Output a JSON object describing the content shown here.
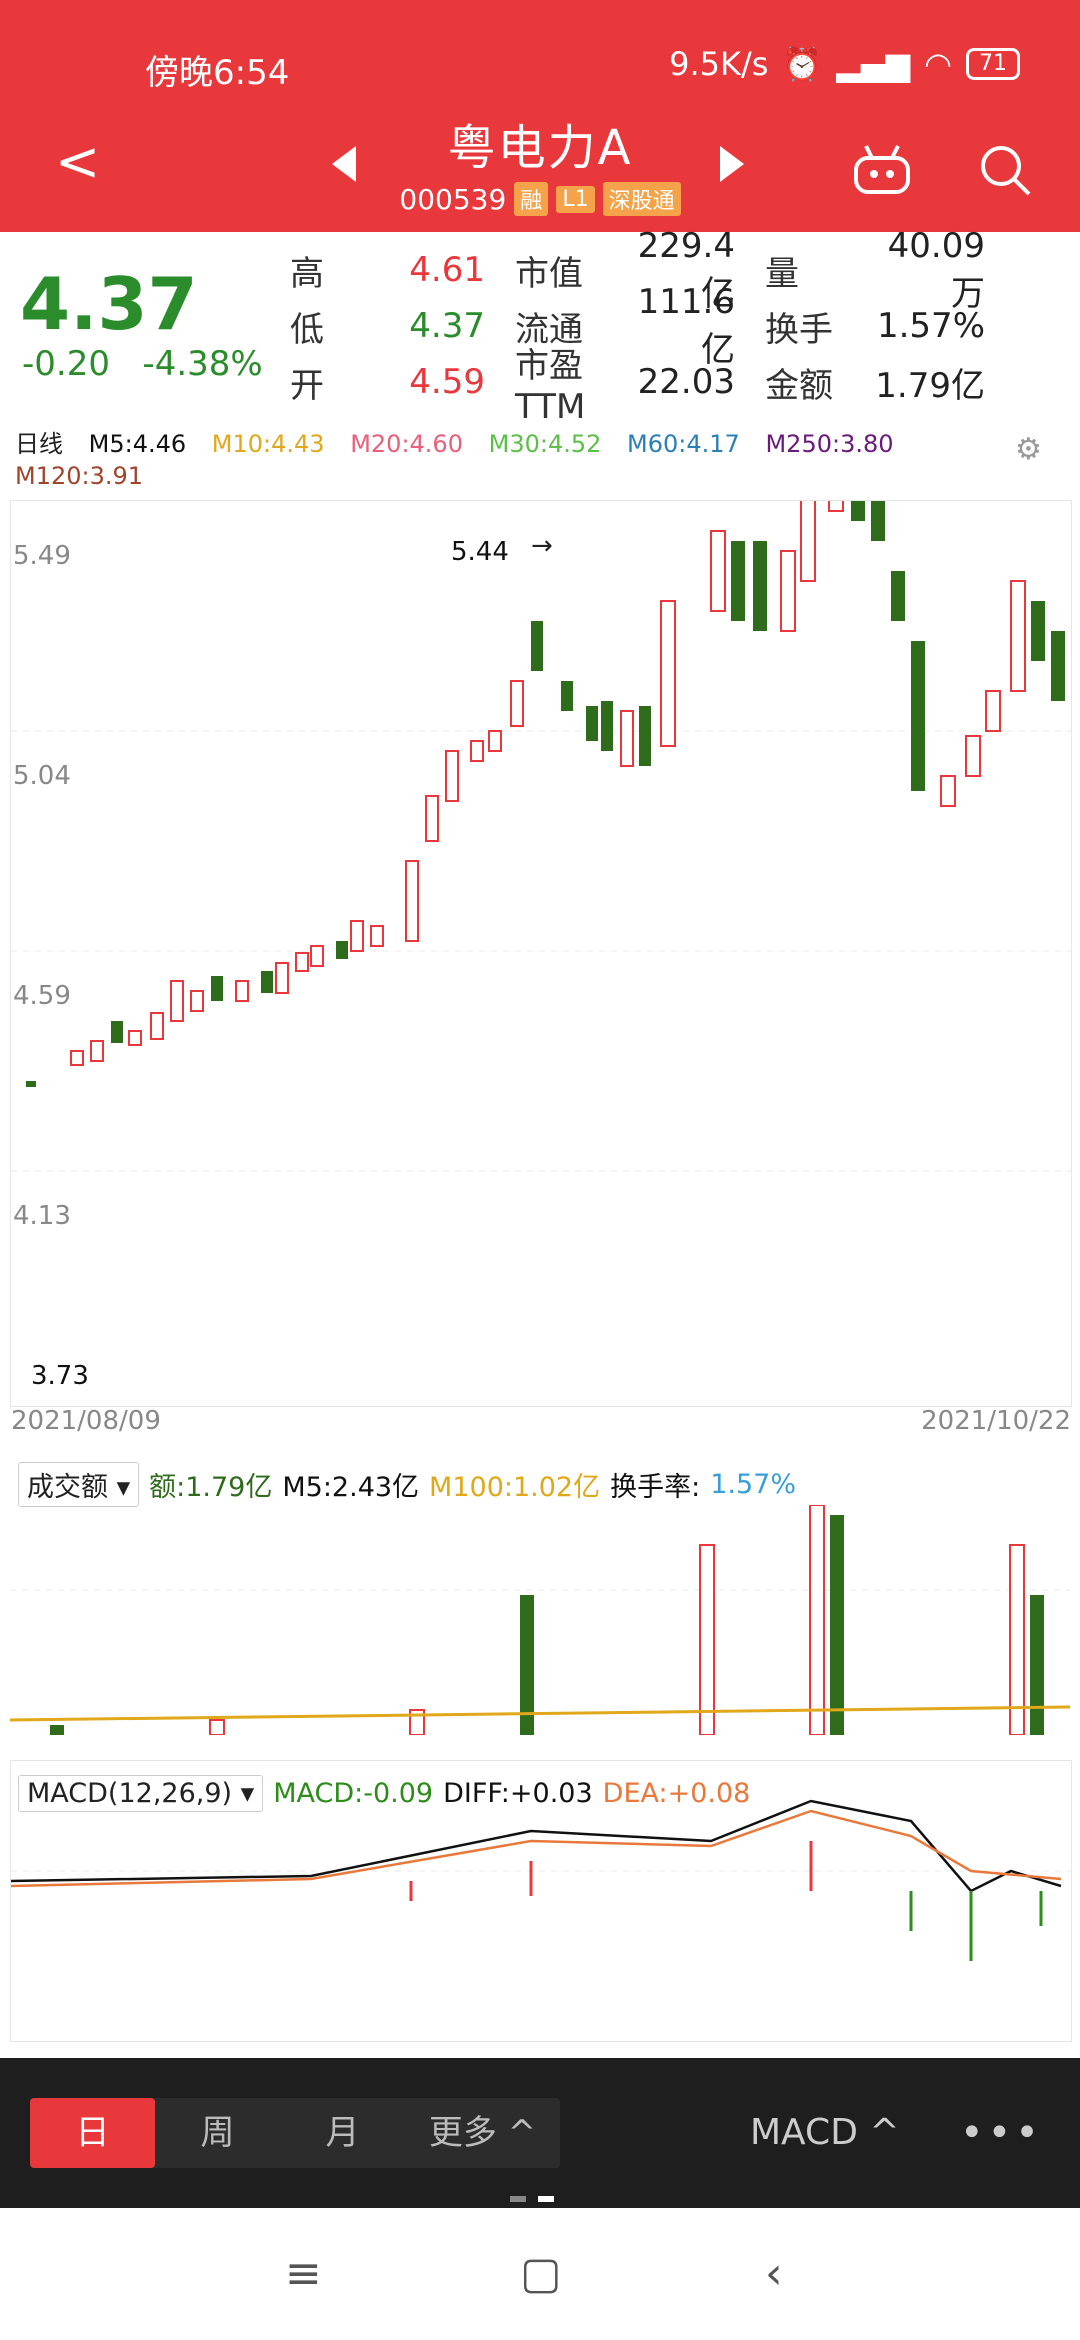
{
  "status": {
    "time": "傍晚6:54",
    "speed": "9.5K/s",
    "battery": "71"
  },
  "header": {
    "name": "粤电力A",
    "code": "000539",
    "tags": [
      "融",
      "L1",
      "深股通"
    ]
  },
  "quote": {
    "price": "4.37",
    "change": "-0.20",
    "change_pct": "-4.38%",
    "rows": [
      {
        "l1": "高",
        "v1": "4.61",
        "l2": "市值",
        "v2": "229.4亿",
        "l3": "量",
        "v3": "40.09万"
      },
      {
        "l1": "低",
        "v1": "4.37",
        "l2": "流通",
        "v2": "111.6亿",
        "l3": "换手",
        "v3": "1.57%"
      },
      {
        "l1": "开",
        "v1": "4.59",
        "l2": "市盈TTM",
        "v2": "22.03",
        "l3": "金额",
        "v3": "1.79亿"
      }
    ]
  },
  "ma": {
    "period": "日线",
    "items": [
      {
        "label": "M5:4.46",
        "color": "#111111"
      },
      {
        "label": "M10:4.43",
        "color": "#e0a81a"
      },
      {
        "label": "M20:4.60",
        "color": "#e8607a"
      },
      {
        "label": "M30:4.52",
        "color": "#5cbf4a"
      },
      {
        "label": "M60:4.17",
        "color": "#2a7fb5"
      },
      {
        "label": "M250:3.80",
        "color": "#6a1a7a"
      },
      {
        "label": "M120:3.91",
        "color": "#a0442c"
      }
    ]
  },
  "chart": {
    "y_labels": [
      "5.49",
      "5.04",
      "4.59",
      "4.13"
    ],
    "high_label": "5.44",
    "low_label": "3.73",
    "start_date": "2021/08/09",
    "end_date": "2021/10/22"
  },
  "volume": {
    "dropdown": "成交额",
    "amount": "额:1.79亿",
    "m5": "M5:2.43亿",
    "m100": "M100:1.02亿",
    "turnover_label": "换手率:",
    "turnover": "1.57%"
  },
  "macd": {
    "dropdown": "MACD(12,26,9)",
    "macd": "MACD:-0.09",
    "diff": "DIFF:+0.03",
    "dea": "DEA:+0.08"
  },
  "bottom": {
    "tabs": [
      "日",
      "周",
      "月",
      "更多 ^"
    ],
    "indicator": "MACD ^",
    "more": "•••"
  }
}
